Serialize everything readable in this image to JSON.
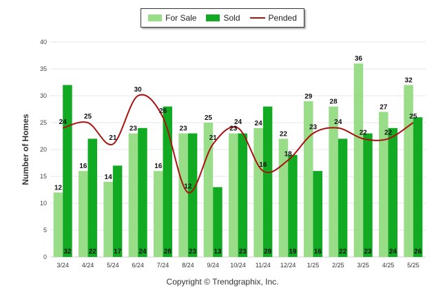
{
  "legend": {
    "for_sale_label": "For Sale",
    "sold_label": "Sold",
    "pended_label": "Pended"
  },
  "colors": {
    "for_sale": "#99dd88",
    "sold": "#11aa22",
    "pended": "#aa1111"
  },
  "copyright": "Copyright © Trendgraphix, Inc.",
  "chart_data": {
    "type": "bar",
    "title": "",
    "xlabel": "",
    "ylabel": "Number of Homes",
    "ylim": [
      0,
      40
    ],
    "yticks": [
      0,
      5,
      10,
      15,
      20,
      25,
      30,
      35,
      40
    ],
    "grid": true,
    "legend_position": "top-center",
    "categories": [
      "3/24",
      "4/24",
      "5/24",
      "6/24",
      "7/24",
      "8/24",
      "9/24",
      "10/24",
      "11/24",
      "12/24",
      "1/25",
      "2/25",
      "3/25",
      "4/25",
      "5/25"
    ],
    "series": [
      {
        "name": "For Sale",
        "type": "bar",
        "values": [
          12,
          16,
          14,
          23,
          16,
          23,
          25,
          23,
          24,
          22,
          29,
          28,
          36,
          27,
          32
        ]
      },
      {
        "name": "Sold",
        "type": "bar",
        "values": [
          32,
          22,
          17,
          24,
          28,
          23,
          13,
          23,
          28,
          19,
          16,
          22,
          23,
          24,
          26
        ]
      },
      {
        "name": "Pended",
        "type": "line",
        "values": [
          24,
          25,
          21,
          30,
          26,
          12,
          21,
          24,
          16,
          18,
          23,
          24,
          22,
          22,
          25
        ]
      }
    ]
  }
}
